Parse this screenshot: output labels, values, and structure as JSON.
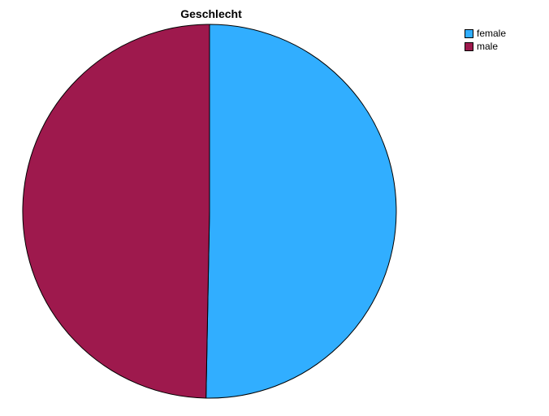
{
  "chart_data": {
    "type": "pie",
    "title": "Geschlecht",
    "legend_position": "top-right",
    "slices": [
      {
        "label": "female",
        "value": 50.3,
        "color": "#31aeff"
      },
      {
        "label": "male",
        "value": 49.7,
        "color": "#9e194d"
      }
    ]
  }
}
